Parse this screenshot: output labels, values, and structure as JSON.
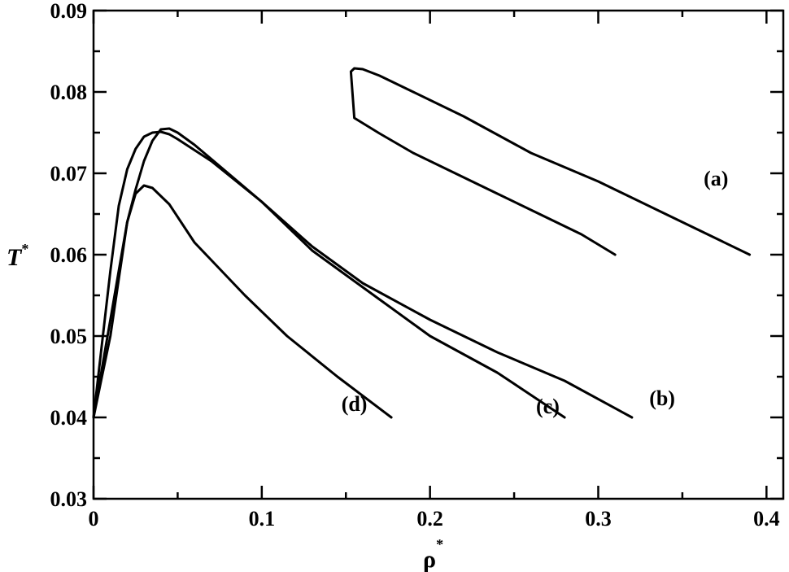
{
  "chart_data": {
    "type": "line",
    "xlabel": "ρ",
    "xlabel_superscript": "*",
    "ylabel": "T",
    "ylabel_superscript": "*",
    "xlim": [
      0,
      0.41
    ],
    "ylim": [
      0.03,
      0.09
    ],
    "xticks": [
      0,
      0.1,
      0.2,
      0.3,
      0.4
    ],
    "xtick_labels": [
      "0",
      "0.1",
      "0.2",
      "0.3",
      "0.4"
    ],
    "yticks": [
      0.03,
      0.04,
      0.05,
      0.06,
      0.07,
      0.08,
      0.09
    ],
    "ytick_labels": [
      "0.03",
      "0.04",
      "0.05",
      "0.06",
      "0.07",
      "0.08",
      "0.09"
    ],
    "grid": false,
    "series": [
      {
        "name": "(a)",
        "x": [
          0.31,
          0.29,
          0.265,
          0.24,
          0.215,
          0.19,
          0.17,
          0.155,
          0.153,
          0.155,
          0.16,
          0.17,
          0.19,
          0.22,
          0.26,
          0.3,
          0.34,
          0.39
        ],
        "y": [
          0.06,
          0.0625,
          0.065,
          0.0675,
          0.07,
          0.0725,
          0.0749,
          0.0768,
          0.0825,
          0.0829,
          0.0828,
          0.082,
          0.08,
          0.077,
          0.0725,
          0.069,
          0.065,
          0.06
        ],
        "label_at": [
          0.37,
          0.0685
        ]
      },
      {
        "name": "(b)",
        "x": [
          0.0,
          0.005,
          0.01,
          0.015,
          0.02,
          0.025,
          0.03,
          0.035,
          0.04,
          0.045,
          0.05,
          0.06,
          0.08,
          0.1,
          0.13,
          0.16,
          0.2,
          0.24,
          0.28,
          0.32
        ],
        "y": [
          0.04,
          0.046,
          0.052,
          0.058,
          0.064,
          0.068,
          0.0715,
          0.074,
          0.0754,
          0.0755,
          0.075,
          0.0735,
          0.07,
          0.0665,
          0.061,
          0.0565,
          0.052,
          0.048,
          0.0445,
          0.04
        ],
        "label_at": [
          0.338,
          0.0415
        ]
      },
      {
        "name": "(c)",
        "x": [
          0.0,
          0.005,
          0.01,
          0.015,
          0.02,
          0.025,
          0.03,
          0.035,
          0.04,
          0.045,
          0.05,
          0.07,
          0.1,
          0.13,
          0.17,
          0.2,
          0.24,
          0.28
        ],
        "y": [
          0.04,
          0.049,
          0.058,
          0.066,
          0.0705,
          0.073,
          0.0745,
          0.075,
          0.0751,
          0.0748,
          0.0742,
          0.0715,
          0.0665,
          0.0605,
          0.0545,
          0.05,
          0.0455,
          0.04
        ],
        "label_at": [
          0.27,
          0.0405
        ]
      },
      {
        "name": "(d)",
        "x": [
          0.0,
          0.005,
          0.01,
          0.015,
          0.02,
          0.025,
          0.03,
          0.035,
          0.045,
          0.06,
          0.09,
          0.115,
          0.145,
          0.177
        ],
        "y": [
          0.04,
          0.045,
          0.05,
          0.057,
          0.064,
          0.0675,
          0.0685,
          0.0682,
          0.0662,
          0.0615,
          0.055,
          0.05,
          0.045,
          0.04
        ],
        "label_at": [
          0.155,
          0.0408
        ]
      }
    ]
  }
}
